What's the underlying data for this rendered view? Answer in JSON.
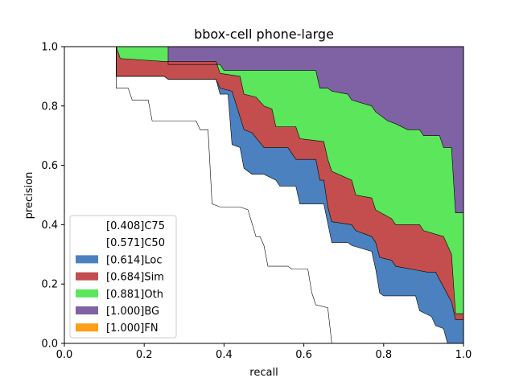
{
  "chart_data": {
    "type": "area",
    "title": "bbox-cell phone-large",
    "xlabel": "recall",
    "ylabel": "precision",
    "xlim": [
      0,
      1
    ],
    "ylim": [
      0,
      1
    ],
    "xticks": [
      "0.0",
      "0.2",
      "0.4",
      "0.6",
      "0.8",
      "1.0"
    ],
    "yticks": [
      "0.0",
      "0.2",
      "0.4",
      "0.6",
      "0.8",
      "1.0"
    ],
    "grid": false,
    "legend_position": "lower-left",
    "series": [
      {
        "name": "[0.408]C75",
        "color": "#ffffff",
        "points": [
          [
            0,
            1
          ],
          [
            0.13,
            1
          ],
          [
            0.13,
            0.86
          ],
          [
            0.16,
            0.86
          ],
          [
            0.17,
            0.82
          ],
          [
            0.21,
            0.82
          ],
          [
            0.22,
            0.75
          ],
          [
            0.33,
            0.75
          ],
          [
            0.34,
            0.72
          ],
          [
            0.36,
            0.72
          ],
          [
            0.37,
            0.47
          ],
          [
            0.39,
            0.46
          ],
          [
            0.44,
            0.46
          ],
          [
            0.46,
            0.45
          ],
          [
            0.48,
            0.36
          ],
          [
            0.49,
            0.36
          ],
          [
            0.5,
            0.33
          ],
          [
            0.51,
            0.26
          ],
          [
            0.56,
            0.26
          ],
          [
            0.57,
            0.25
          ],
          [
            0.61,
            0.25
          ],
          [
            0.62,
            0.17
          ],
          [
            0.63,
            0.13
          ],
          [
            0.66,
            0.12
          ],
          [
            0.67,
            0
          ]
        ]
      },
      {
        "name": "[0.571]C50",
        "color": "#ffffff",
        "points": [
          [
            0,
            1
          ],
          [
            0.13,
            1
          ],
          [
            0.13,
            0.9
          ],
          [
            0.25,
            0.9
          ],
          [
            0.26,
            0.89
          ],
          [
            0.38,
            0.89
          ],
          [
            0.39,
            0.84
          ],
          [
            0.41,
            0.84
          ],
          [
            0.42,
            0.67
          ],
          [
            0.44,
            0.66
          ],
          [
            0.45,
            0.59
          ],
          [
            0.47,
            0.57
          ],
          [
            0.5,
            0.57
          ],
          [
            0.53,
            0.55
          ],
          [
            0.54,
            0.53
          ],
          [
            0.58,
            0.53
          ],
          [
            0.59,
            0.47
          ],
          [
            0.65,
            0.47
          ],
          [
            0.67,
            0.34
          ],
          [
            0.71,
            0.34
          ],
          [
            0.72,
            0.33
          ],
          [
            0.77,
            0.31
          ],
          [
            0.78,
            0.25
          ],
          [
            0.79,
            0.17
          ],
          [
            0.8,
            0.16
          ],
          [
            0.88,
            0.16
          ],
          [
            0.89,
            0.11
          ],
          [
            0.92,
            0.09
          ],
          [
            0.93,
            0.06
          ],
          [
            0.95,
            0.05
          ],
          [
            0.96,
            0
          ],
          [
            1,
            0
          ]
        ]
      },
      {
        "name": "[0.614]Loc",
        "color": "#4c81bf",
        "points": [
          [
            0,
            1
          ],
          [
            0.13,
            1
          ],
          [
            0.13,
            0.9
          ],
          [
            0.25,
            0.9
          ],
          [
            0.26,
            0.89
          ],
          [
            0.38,
            0.89
          ],
          [
            0.39,
            0.86
          ],
          [
            0.42,
            0.85
          ],
          [
            0.45,
            0.72
          ],
          [
            0.47,
            0.71
          ],
          [
            0.5,
            0.66
          ],
          [
            0.56,
            0.66
          ],
          [
            0.58,
            0.62
          ],
          [
            0.63,
            0.62
          ],
          [
            0.64,
            0.55
          ],
          [
            0.65,
            0.55
          ],
          [
            0.66,
            0.46
          ],
          [
            0.67,
            0.41
          ],
          [
            0.72,
            0.4
          ],
          [
            0.73,
            0.38
          ],
          [
            0.77,
            0.36
          ],
          [
            0.78,
            0.34
          ],
          [
            0.79,
            0.29
          ],
          [
            0.82,
            0.28
          ],
          [
            0.83,
            0.26
          ],
          [
            0.87,
            0.25
          ],
          [
            0.91,
            0.24
          ],
          [
            0.93,
            0.24
          ],
          [
            0.97,
            0.14
          ],
          [
            0.98,
            0.08
          ],
          [
            1,
            0.08
          ],
          [
            1,
            0
          ]
        ]
      },
      {
        "name": "[0.684]Sim",
        "color": "#c44e4e",
        "points": [
          [
            0,
            1
          ],
          [
            0.13,
            1
          ],
          [
            0.14,
            0.96
          ],
          [
            0.25,
            0.95
          ],
          [
            0.38,
            0.95
          ],
          [
            0.39,
            0.91
          ],
          [
            0.44,
            0.9
          ],
          [
            0.45,
            0.84
          ],
          [
            0.48,
            0.83
          ],
          [
            0.5,
            0.8
          ],
          [
            0.52,
            0.79
          ],
          [
            0.53,
            0.73
          ],
          [
            0.58,
            0.73
          ],
          [
            0.59,
            0.69
          ],
          [
            0.65,
            0.68
          ],
          [
            0.66,
            0.62
          ],
          [
            0.67,
            0.58
          ],
          [
            0.72,
            0.55
          ],
          [
            0.73,
            0.5
          ],
          [
            0.77,
            0.49
          ],
          [
            0.78,
            0.45
          ],
          [
            0.82,
            0.42
          ],
          [
            0.83,
            0.4
          ],
          [
            0.89,
            0.4
          ],
          [
            0.9,
            0.38
          ],
          [
            0.95,
            0.36
          ],
          [
            0.97,
            0.3
          ],
          [
            0.98,
            0.1
          ],
          [
            1,
            0.1
          ],
          [
            1,
            0
          ]
        ]
      },
      {
        "name": "[0.881]Oth",
        "color": "#5ce65c",
        "points": [
          [
            0,
            1
          ],
          [
            0.26,
            1
          ],
          [
            0.26,
            0.94
          ],
          [
            0.39,
            0.94
          ],
          [
            0.4,
            0.92
          ],
          [
            0.63,
            0.92
          ],
          [
            0.64,
            0.86
          ],
          [
            0.66,
            0.86
          ],
          [
            0.67,
            0.85
          ],
          [
            0.71,
            0.84
          ],
          [
            0.72,
            0.82
          ],
          [
            0.77,
            0.8
          ],
          [
            0.78,
            0.78
          ],
          [
            0.81,
            0.75
          ],
          [
            0.83,
            0.74
          ],
          [
            0.86,
            0.72
          ],
          [
            0.89,
            0.72
          ],
          [
            0.9,
            0.7
          ],
          [
            0.94,
            0.7
          ],
          [
            0.95,
            0.66
          ],
          [
            0.97,
            0.66
          ],
          [
            0.98,
            0.44
          ],
          [
            1,
            0.44
          ],
          [
            1,
            0
          ]
        ]
      },
      {
        "name": "[1.000]BG",
        "color": "#7f62a3",
        "points": [
          [
            0,
            1
          ],
          [
            1,
            1
          ]
        ]
      },
      {
        "name": "[1.000]FN",
        "color": "#ff9e1a",
        "points": [
          [
            0,
            1
          ],
          [
            1,
            1
          ]
        ]
      }
    ]
  }
}
